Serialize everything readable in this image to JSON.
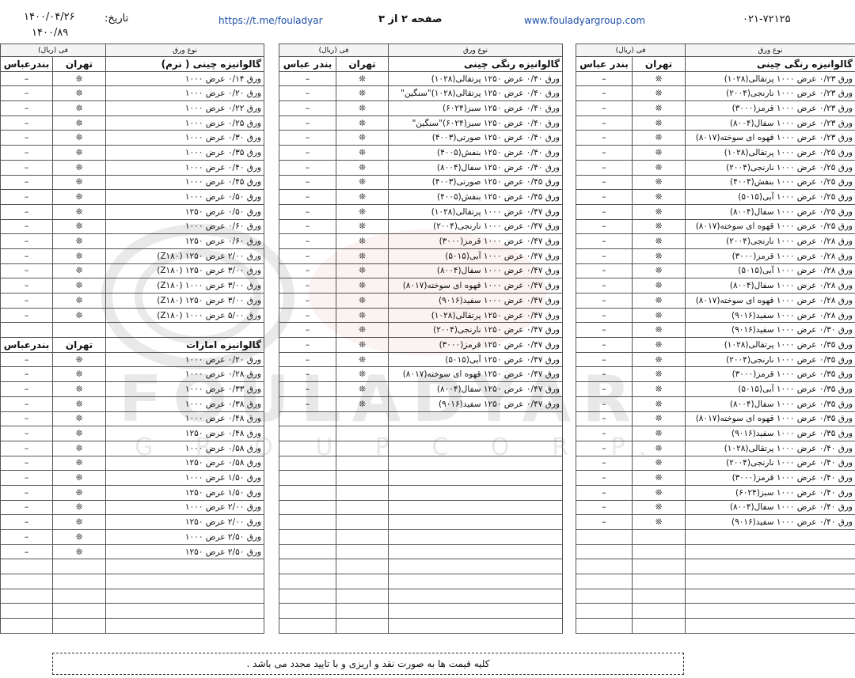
{
  "header": {
    "phone": "۰۲۱-۷۲۱۲۵",
    "website": "www.fouladyargroup.com",
    "page": "صفحه ۲ از ۳",
    "telegram": "https://t.me/fouladyar",
    "date_label": "تاریخ:",
    "date": "۱۴۰۰/۰۴/۲۶",
    "code": "۱۴۰۰/۸۹"
  },
  "watermark": {
    "brand": "FOULADYAR",
    "sub": "G R O U P   C O R P."
  },
  "tables": [
    {
      "col_type": "نوع ورق",
      "col_price": "فی (ریال)",
      "sections": [
        {
          "title": "گالوانیزه رنگی چینی",
          "tehran": "تهران",
          "bandar": "بندر عباس",
          "rows": [
            [
              "ورق ۰/۲۳ عرض ۱۰۰۰ پرتقالی(۱۰۲۸)",
              "❊",
              "–"
            ],
            [
              "ورق ۰/۲۳ عرض ۱۰۰۰ نارنجی(۲۰۰۴)",
              "❊",
              "–"
            ],
            [
              "ورق ۰/۲۳ عرض ۱۰۰۰ قرمز(۳۰۰۰)",
              "❊",
              "–"
            ],
            [
              "ورق ۰/۲۳ عرض ۱۰۰۰ سفال(۸۰۰۴)",
              "❊",
              "–"
            ],
            [
              "ورق ۰/۲۳ عرض ۱۰۰۰ قهوه ای سوخته(۸۰۱۷)",
              "❊",
              "–"
            ],
            [
              "ورق ۰/۲۵ عرض ۱۰۰۰ پرتقالی(۱۰۲۸)",
              "❊",
              "–"
            ],
            [
              "ورق ۰/۲۵ عرض ۱۰۰۰ نارنجی(۲۰۰۴)",
              "❊",
              "–"
            ],
            [
              "ورق ۰/۲۵ عرض ۱۰۰۰ بنفش(۴۰۰۴)",
              "❊",
              "–"
            ],
            [
              "ورق ۰/۲۵ عرض ۱۰۰۰ آبی(۵۰۱۵)",
              "❊",
              "–"
            ],
            [
              "ورق ۰/۲۵ عرض ۱۰۰۰ سفال(۸۰۰۴)",
              "❊",
              "–"
            ],
            [
              "ورق ۰/۲۵ عرض ۱۰۰۰ قهوه ای سوخته(۸۰۱۷)",
              "❊",
              "–"
            ],
            [
              "ورق ۰/۲۸ عرض ۱۰۰۰ نارنجی(۲۰۰۴)",
              "❊",
              "–"
            ],
            [
              "ورق ۰/۲۸ عرض ۱۰۰۰ قرمز(۳۰۰۰)",
              "❊",
              "–"
            ],
            [
              "ورق ۰/۲۸ عرض ۱۰۰۰ آبی(۵۰۱۵)",
              "❊",
              "–"
            ],
            [
              "ورق ۰/۲۸ عرض ۱۰۰۰ سفال(۸۰۰۴)",
              "❊",
              "–"
            ],
            [
              "ورق ۰/۲۸ عرض ۱۰۰۰ قهوه ای سوخته(۸۰۱۷)",
              "❊",
              "–"
            ],
            [
              "ورق ۰/۲۸ عرض ۱۰۰۰ سفید(۹۰۱۶)",
              "❊",
              "–"
            ],
            [
              "ورق ۰/۳۰ عرض ۱۰۰۰ سفید(۹۰۱۶)",
              "❊",
              "–"
            ],
            [
              "ورق ۰/۳۵ عرض ۱۰۰۰ پرتقالی(۱۰۲۸)",
              "❊",
              "–"
            ],
            [
              "ورق ۰/۳۵ عرض ۱۰۰۰ نارنجی(۲۰۰۴)",
              "❊",
              "–"
            ],
            [
              "ورق ۰/۳۵ عرض ۱۰۰۰ قرمز(۳۰۰۰)",
              "❊",
              "–"
            ],
            [
              "ورق ۰/۳۵ عرض ۱۰۰۰ آبی(۵۰۱۵)",
              "❊",
              "–"
            ],
            [
              "ورق ۰/۳۵ عرض ۱۰۰۰ سفال(۸۰۰۴)",
              "❊",
              "–"
            ],
            [
              "ورق ۰/۳۵ عرض ۱۰۰۰ قهوه ای سوخته(۸۰۱۷)",
              "❊",
              "–"
            ],
            [
              "ورق ۰/۳۵ عرض ۱۰۰۰ سفید(۹۰۱۶)",
              "❊",
              "–"
            ],
            [
              "ورق ۰/۴۰ عرض ۱۰۰۰ پرتقالی(۱۰۲۸)",
              "❊",
              "–"
            ],
            [
              "ورق ۰/۴۰ عرض ۱۰۰۰ نارنجی(۲۰۰۴)",
              "❊",
              "–"
            ],
            [
              "ورق ۰/۴۰ عرض ۱۰۰۰ قرمز(۳۰۰۰)",
              "❊",
              "–"
            ],
            [
              "ورق ۰/۴۰ عرض ۱۰۰۰ سبز(۶۰۲۴)",
              "❊",
              "–"
            ],
            [
              "ورق ۰/۴۰ عرض ۱۰۰۰ سفال(۸۰۰۴)",
              "❊",
              "–"
            ],
            [
              "ورق ۰/۴۰ عرض ۱۰۰۰ سفید(۹۰۱۶)",
              "❊",
              "–"
            ]
          ]
        }
      ]
    },
    {
      "col_type": "نوع ورق",
      "col_price": "فی (ریال)",
      "sections": [
        {
          "title": "گالوانیزه رنگی چینی",
          "tehran": "تهران",
          "bandar": "بندر عباس",
          "rows": [
            [
              "ورق ۰/۴۰ عرض ۱۲۵۰ پرتقالی(۱۰۲۸)",
              "❊",
              "–"
            ],
            [
              "ورق ۰/۴۰ عرض ۱۲۵۰ پرتقالی(۱۰۲۸)\"سنگین\"",
              "❊",
              "–"
            ],
            [
              "ورق ۰/۴۰ عرض ۱۲۵۰ سبز(۶۰۲۴)",
              "❊",
              "–"
            ],
            [
              "ورق ۰/۴۰ عرض ۱۲۵۰ سبز(۶۰۲۴)\"سنگین\"",
              "❊",
              "–"
            ],
            [
              "ورق ۰/۴۰ عرض ۱۲۵۰ صورتی(۴۰۰۳)",
              "❊",
              "–"
            ],
            [
              "ورق ۰/۴۰ عرض ۱۲۵۰ بنفش(۴۰۰۵)",
              "❊",
              "–"
            ],
            [
              "ورق ۰/۴۰ عرض ۱۲۵۰ سفال(۸۰۰۴)",
              "❊",
              "–"
            ],
            [
              "ورق ۰/۴۵ عرض ۱۲۵۰ صورتی(۴۰۰۳)",
              "❊",
              "–"
            ],
            [
              "ورق ۰/۴۵ عرض ۱۲۵۰ بنفش(۴۰۰۵)",
              "❊",
              "–"
            ],
            [
              "ورق ۰/۴۷ عرض ۱۰۰۰ پرتقالی(۱۰۲۸)",
              "❊",
              "–"
            ],
            [
              "ورق ۰/۴۷ عرض ۱۰۰۰ نارنجی(۲۰۰۴)",
              "❊",
              "–"
            ],
            [
              "ورق ۰/۴۷ عرض ۱۰۰۰ قرمز(۳۰۰۰)",
              "❊",
              "–"
            ],
            [
              "ورق ۰/۴۷ عرض ۱۰۰۰ آبی(۵۰۱۵)",
              "❊",
              "–"
            ],
            [
              "ورق ۰/۴۷ عرض ۱۰۰۰ سفال(۸۰۰۴)",
              "❊",
              "–"
            ],
            [
              "ورق ۰/۴۷ عرض ۱۰۰۰ قهوه ای سوخته(۸۰۱۷)",
              "❊",
              "–"
            ],
            [
              "ورق ۰/۴۷ عرض ۱۰۰۰ سفید(۹۰۱۶)",
              "❊",
              "–"
            ],
            [
              "ورق ۰/۴۷ عرض ۱۲۵۰ پرتقالی(۱۰۲۸)",
              "❊",
              "–"
            ],
            [
              "ورق ۰/۴۷ عرض ۱۲۵۰ نارنجی(۲۰۰۴)",
              "❊",
              "–"
            ],
            [
              "ورق ۰/۴۷ عرض ۱۲۵۰ قرمز(۳۰۰۰)",
              "❊",
              "–"
            ],
            [
              "ورق ۰/۴۷ عرض ۱۲۵۰ آبی(۵۰۱۵)",
              "❊",
              "–"
            ],
            [
              "ورق ۰/۴۷ عرض ۱۲۵۰ قهوه ای سوخته(۸۰۱۷)",
              "❊",
              "–"
            ],
            [
              "ورق ۰/۴۷ عرض ۱۲۵۰ سفال(۸۰۰۴)",
              "❊",
              "–"
            ],
            [
              "ورق ۰/۴۷ عرض ۱۲۵۰ سفید(۹۰۱۶)",
              "❊",
              "–"
            ]
          ]
        }
      ]
    },
    {
      "col_type": "نوع ورق",
      "col_price": "فی (ریال)",
      "sections": [
        {
          "title": "گالوانیزه چینی ( نرم)",
          "tehran": "تهران",
          "bandar": "بندرعباس",
          "rows": [
            [
              "ورق ۰/۱۴ عرض ۱۰۰۰",
              "❊",
              "–"
            ],
            [
              "ورق ۰/۲۰ عرض ۱۰۰۰",
              "❊",
              "–"
            ],
            [
              "ورق ۰/۲۲ عرض ۱۰۰۰",
              "❊",
              "–"
            ],
            [
              "ورق ۰/۲۵ عرض ۱۰۰۰",
              "❊",
              "–"
            ],
            [
              "ورق ۰/۳۰ عرض ۱۰۰۰",
              "❊",
              "–"
            ],
            [
              "ورق ۰/۳۵ عرض ۱۰۰۰",
              "❊",
              "–"
            ],
            [
              "ورق ۰/۴۰ عرض ۱۰۰۰",
              "❊",
              "–"
            ],
            [
              "ورق ۰/۴۵ عرض ۱۰۰۰",
              "❊",
              "–"
            ],
            [
              "ورق ۰/۵۰ عرض ۱۰۰۰",
              "❊",
              "–"
            ],
            [
              "ورق ۰/۵۰ عرض ۱۲۵۰",
              "❊",
              "–"
            ],
            [
              "ورق ۰/۶۰ عرض ۱۰۰۰",
              "❊",
              "–"
            ],
            [
              "ورق ۰/۶۰ عرض ۱۲۵۰",
              "❊",
              "–"
            ],
            [
              "ورق ۲/۰۰ عرض ۱۲۵۰ (Z۱۸۰)",
              "❊",
              "–"
            ],
            [
              "ورق ۳/۰۰ عرض ۱۲۵۰ (Z۱۸۰)",
              "❊",
              "–"
            ],
            [
              "ورق ۳/۰۰ عرض ۱۰۰۰ (Z۱۸۰)",
              "❊",
              "–"
            ],
            [
              "ورق ۳/۰۰ عرض ۱۲۵۰ (Z۱۸۰)",
              "❊",
              "–"
            ],
            [
              "ورق ۵/۰۰ عرض ۱۰۰۰ (Z۱۸۰)",
              "❊",
              "–"
            ]
          ]
        },
        {
          "title": "گالوانیزه امارات",
          "tehran": "تهران",
          "bandar": "بندرعباس",
          "rows": [
            [
              "ورق ۰/۲۰ عرض ۱۰۰۰",
              "❊",
              "–"
            ],
            [
              "ورق ۰/۲۸ عرض ۱۰۰۰",
              "❊",
              "–"
            ],
            [
              "ورق ۰/۳۳ عرض ۱۰۰۰",
              "❊",
              "–"
            ],
            [
              "ورق ۰/۳۸ عرض ۱۰۰۰",
              "❊",
              "–"
            ],
            [
              "ورق ۰/۴۸ عرض ۱۰۰۰",
              "❊",
              "–"
            ],
            [
              "ورق ۰/۴۸ عرض ۱۲۵۰",
              "❊",
              "–"
            ],
            [
              "ورق ۰/۵۸ عرض ۱۰۰۰",
              "❊",
              "–"
            ],
            [
              "ورق ۰/۵۸ عرض ۱۲۵۰",
              "❊",
              "–"
            ],
            [
              "ورق ۱/۵۰ عرض ۱۰۰۰",
              "❊",
              "–"
            ],
            [
              "ورق ۱/۵۰ عرض ۱۲۵۰",
              "❊",
              "–"
            ],
            [
              "ورق ۲/۰۰ عرض ۱۰۰۰",
              "❊",
              "–"
            ],
            [
              "ورق ۲/۰۰ عرض ۱۲۵۰",
              "❊",
              "–"
            ],
            [
              "ورق ۲/۵۰ عرض ۱۰۰۰",
              "❊",
              "–"
            ],
            [
              "ورق ۲/۵۰ عرض ۱۲۵۰",
              "❊",
              "–"
            ]
          ]
        }
      ]
    }
  ],
  "footer": "کلیه قیمت ها به صورت نقد و اریزی و با تایید مجدد می باشد ."
}
